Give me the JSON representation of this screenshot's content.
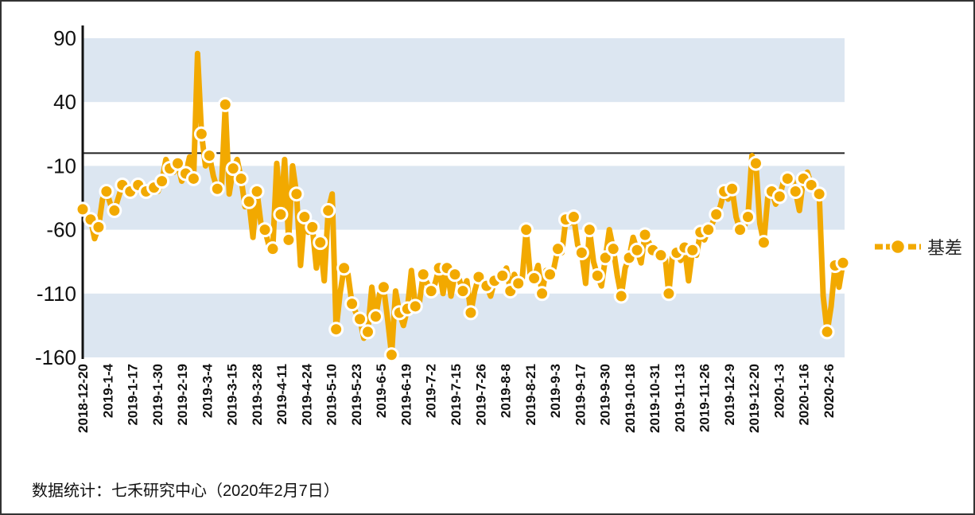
{
  "chart_data": {
    "type": "line",
    "title": "",
    "xlabel": "",
    "ylabel": "",
    "ylim": [
      -160,
      90
    ],
    "yticks": [
      90,
      40,
      -10,
      -60,
      -110,
      -160
    ],
    "reference_line": 0,
    "bands": [
      [
        40,
        90
      ],
      [
        -60,
        -10
      ],
      [
        -160,
        -110
      ]
    ],
    "legend_position": "right",
    "colors": {
      "line": "#F2A900",
      "band": "#DCE6F1",
      "marker_fill": "#F2A900",
      "marker_stroke": "#ffffff"
    },
    "x_tick_labels": [
      "2018-12-20",
      "2019-1-4",
      "2019-1-17",
      "2019-1-30",
      "2019-2-19",
      "2019-3-4",
      "2019-3-15",
      "2019-3-28",
      "2019-4-11",
      "2019-4-24",
      "2019-5-10",
      "2019-5-23",
      "2019-6-5",
      "2019-6-19",
      "2019-7-2",
      "2019-7-15",
      "2019-7-26",
      "2019-8-8",
      "2019-8-21",
      "2019-9-3",
      "2019-9-17",
      "2019-9-30",
      "2019-10-18",
      "2019-10-31",
      "2019-11-13",
      "2019-11-26",
      "2019-12-9",
      "2019-12-20",
      "2020-1-3",
      "2020-1-16",
      "2020-2-6"
    ],
    "series": [
      {
        "name": "基差",
        "values": [
          -44,
          -48,
          -52,
          -67,
          -58,
          -36,
          -30,
          -40,
          -45,
          -35,
          -25,
          -28,
          -30,
          -28,
          -25,
          -32,
          -30,
          -26,
          -27,
          -30,
          -22,
          -5,
          -12,
          -15,
          -8,
          -22,
          -16,
          -3,
          -20,
          78,
          15,
          -10,
          -2,
          -18,
          -28,
          -30,
          38,
          -32,
          -12,
          -5,
          -20,
          -42,
          -38,
          -66,
          -30,
          -55,
          -60,
          -72,
          -75,
          -8,
          -48,
          -5,
          -68,
          -10,
          -32,
          -88,
          -50,
          -62,
          -58,
          -90,
          -70,
          -100,
          -45,
          -32,
          -138,
          -110,
          -90,
          -95,
          -118,
          -125,
          -130,
          -145,
          -140,
          -105,
          -128,
          -110,
          -105,
          -130,
          -158,
          -108,
          -125,
          -135,
          -122,
          -92,
          -120,
          -118,
          -95,
          -102,
          -108,
          -102,
          -90,
          -110,
          -90,
          -112,
          -95,
          -98,
          -108,
          -100,
          -125,
          -108,
          -97,
          -102,
          -104,
          -112,
          -100,
          -98,
          -96,
          -90,
          -108,
          -95,
          -102,
          -98,
          -60,
          -95,
          -98,
          -88,
          -110,
          -92,
          -95,
          -90,
          -75,
          -78,
          -52,
          -55,
          -50,
          -72,
          -78,
          -102,
          -60,
          -85,
          -96,
          -104,
          -82,
          -60,
          -75,
          -96,
          -112,
          -90,
          -82,
          -66,
          -76,
          -86,
          -64,
          -70,
          -76,
          -74,
          -80,
          -78,
          -110,
          -78,
          -78,
          -84,
          -74,
          -100,
          -76,
          -80,
          -62,
          -68,
          -60,
          -55,
          -48,
          -42,
          -30,
          -36,
          -28,
          -50,
          -60,
          -58,
          -50,
          -2,
          -8,
          -55,
          -70,
          -35,
          -30,
          -40,
          -34,
          -22,
          -20,
          -18,
          -30,
          -45,
          -20,
          -15,
          -25,
          -28,
          -32,
          -112,
          -140,
          -120,
          -88,
          -105,
          -86
        ]
      }
    ]
  },
  "legend": {
    "label": "基差"
  },
  "source_note": "数据统计：七禾研究中心（2020年2月7日）"
}
